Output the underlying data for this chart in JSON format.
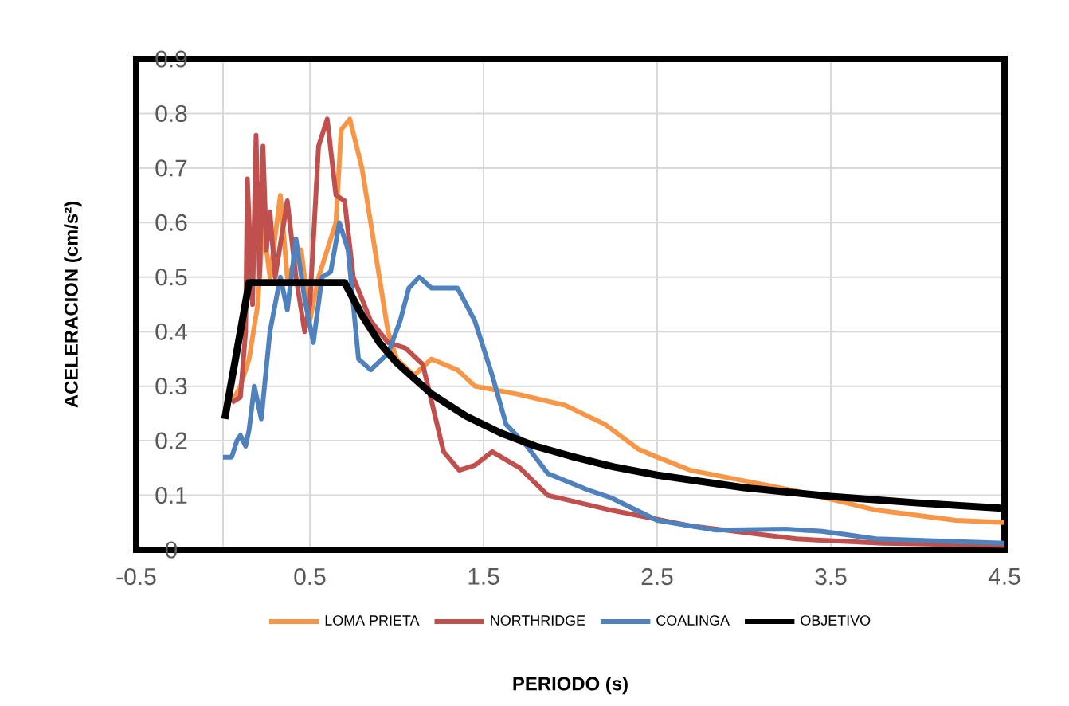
{
  "chart_data": {
    "type": "line",
    "xlabel": "PERIODO (s)",
    "ylabel": "ACELERACION (cm/s²)",
    "xlim": [
      -0.5,
      4.5
    ],
    "ylim": [
      0,
      0.9
    ],
    "xticks": [
      -0.5,
      {
        "value": 0,
        "label": null
      },
      0.5,
      1.5,
      2.5,
      3.5,
      4.5
    ],
    "yticks": [
      0,
      0.1,
      0.2,
      0.3,
      0.4,
      0.5,
      0.6,
      0.7,
      0.8,
      0.9
    ],
    "grid": true,
    "legend": "bottom",
    "series": [
      {
        "name": "LOMA PRIETA",
        "color": "#f79646",
        "x": [
          0.05,
          0.1,
          0.15,
          0.2,
          0.23,
          0.27,
          0.33,
          0.37,
          0.45,
          0.5,
          0.55,
          0.6,
          0.65,
          0.68,
          0.73,
          0.8,
          0.9,
          0.95,
          1.0,
          1.1,
          1.2,
          1.35,
          1.45,
          1.7,
          1.97,
          2.2,
          2.39,
          2.5,
          2.69,
          3.3,
          3.76,
          4.22,
          4.5
        ],
        "values": [
          0.27,
          0.3,
          0.35,
          0.45,
          0.6,
          0.5,
          0.65,
          0.5,
          0.55,
          0.42,
          0.5,
          0.55,
          0.6,
          0.77,
          0.79,
          0.7,
          0.5,
          0.4,
          0.35,
          0.32,
          0.35,
          0.33,
          0.3,
          0.285,
          0.265,
          0.23,
          0.185,
          0.17,
          0.146,
          0.108,
          0.073,
          0.054,
          0.05
        ]
      },
      {
        "name": "NORTHRIDGE",
        "color": "#c0504d",
        "x": [
          0.05,
          0.1,
          0.13,
          0.14,
          0.17,
          0.19,
          0.21,
          0.23,
          0.25,
          0.27,
          0.3,
          0.37,
          0.42,
          0.47,
          0.5,
          0.55,
          0.6,
          0.65,
          0.7,
          0.75,
          0.85,
          0.95,
          1.05,
          1.15,
          1.27,
          1.36,
          1.45,
          1.55,
          1.71,
          1.87,
          2.23,
          2.69,
          3.3,
          3.8,
          4.5
        ],
        "values": [
          0.27,
          0.28,
          0.4,
          0.68,
          0.45,
          0.76,
          0.5,
          0.74,
          0.55,
          0.62,
          0.5,
          0.64,
          0.5,
          0.4,
          0.45,
          0.74,
          0.79,
          0.65,
          0.64,
          0.5,
          0.42,
          0.38,
          0.37,
          0.34,
          0.18,
          0.146,
          0.155,
          0.18,
          0.15,
          0.1,
          0.073,
          0.044,
          0.02,
          0.012,
          0.008
        ]
      },
      {
        "name": "COALINGA",
        "color": "#4f81bd",
        "x": [
          0.0,
          0.05,
          0.08,
          0.1,
          0.13,
          0.15,
          0.18,
          0.22,
          0.27,
          0.33,
          0.37,
          0.42,
          0.47,
          0.52,
          0.57,
          0.62,
          0.67,
          0.72,
          0.78,
          0.85,
          0.95,
          1.02,
          1.07,
          1.13,
          1.2,
          1.35,
          1.45,
          1.55,
          1.63,
          1.75,
          1.87,
          2.1,
          2.23,
          2.5,
          2.84,
          3.24,
          3.45,
          3.76,
          4.5
        ],
        "values": [
          0.17,
          0.17,
          0.2,
          0.21,
          0.19,
          0.22,
          0.3,
          0.24,
          0.4,
          0.5,
          0.44,
          0.57,
          0.46,
          0.38,
          0.5,
          0.51,
          0.6,
          0.55,
          0.35,
          0.33,
          0.36,
          0.42,
          0.48,
          0.5,
          0.48,
          0.48,
          0.42,
          0.32,
          0.23,
          0.19,
          0.14,
          0.11,
          0.096,
          0.054,
          0.036,
          0.038,
          0.034,
          0.02,
          0.012
        ]
      },
      {
        "name": "OBJETIVO",
        "color": "#000000",
        "x": [
          0.01,
          0.15,
          0.7,
          0.8,
          0.9,
          1.0,
          1.2,
          1.4,
          1.6,
          1.8,
          2.0,
          2.25,
          2.5,
          3.0,
          3.5,
          4.0,
          4.5
        ],
        "values": [
          0.24,
          0.49,
          0.49,
          0.43,
          0.38,
          0.343,
          0.286,
          0.245,
          0.214,
          0.19,
          0.172,
          0.152,
          0.137,
          0.114,
          0.098,
          0.086,
          0.076
        ]
      }
    ]
  }
}
